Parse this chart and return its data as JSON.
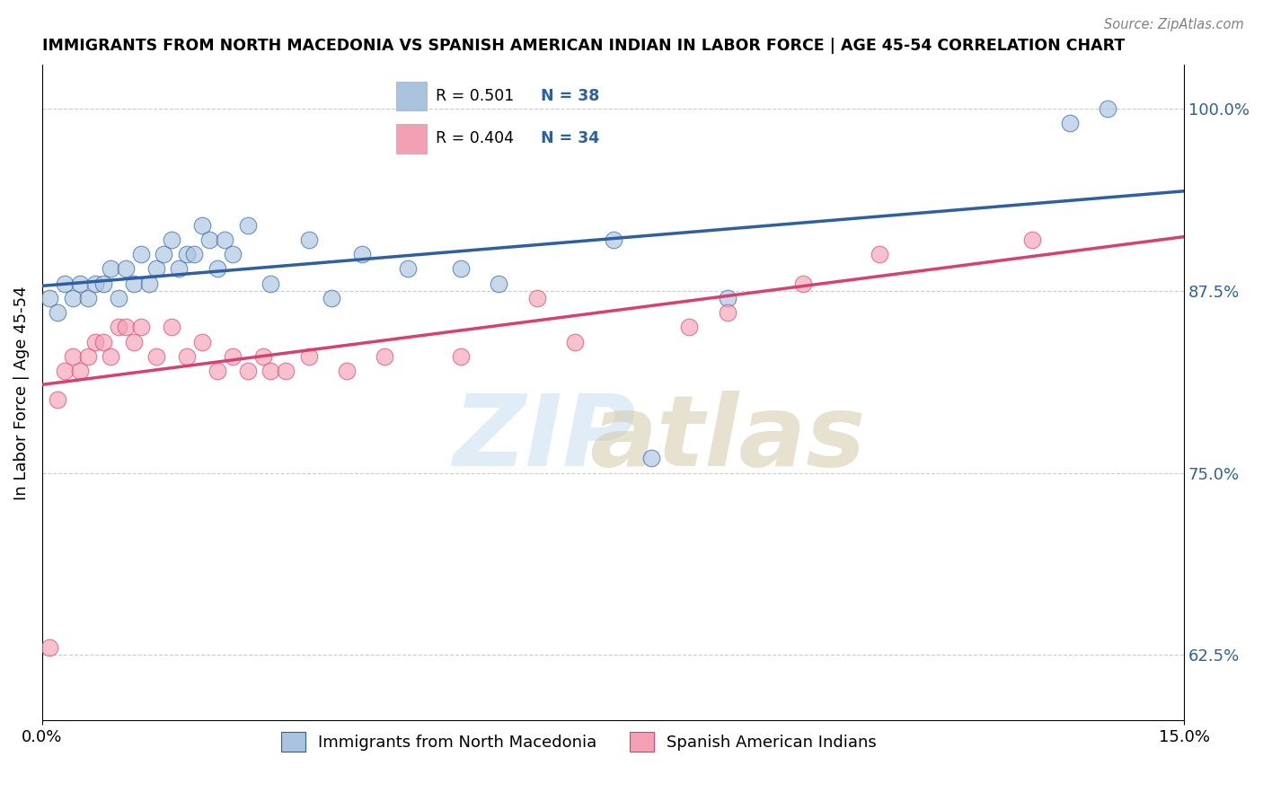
{
  "title": "IMMIGRANTS FROM NORTH MACEDONIA VS SPANISH AMERICAN INDIAN IN LABOR FORCE | AGE 45-54 CORRELATION CHART",
  "source": "Source: ZipAtlas.com",
  "ylabel": "In Labor Force | Age 45-54",
  "right_yticks": [
    62.5,
    75.0,
    87.5,
    100.0
  ],
  "right_ytick_labels": [
    "62.5%",
    "75.0%",
    "87.5%",
    "100.0%"
  ],
  "xlim": [
    0.0,
    15.0
  ],
  "ylim": [
    58.0,
    103.0
  ],
  "blue_R": 0.501,
  "blue_N": 38,
  "pink_R": 0.404,
  "pink_N": 34,
  "blue_color": "#aac4e0",
  "blue_line_color": "#2e5fa3",
  "pink_color": "#f4a0b4",
  "pink_line_color": "#d84070",
  "blue_label": "Immigrants from North Macedonia",
  "pink_label": "Spanish American Indians",
  "blue_scatter_x": [
    0.1,
    0.2,
    0.3,
    0.4,
    0.5,
    0.6,
    0.7,
    0.8,
    0.9,
    1.0,
    1.1,
    1.2,
    1.3,
    1.4,
    1.5,
    1.6,
    1.7,
    1.8,
    1.9,
    2.0,
    2.1,
    2.2,
    2.3,
    2.4,
    2.5,
    2.7,
    3.0,
    3.5,
    3.8,
    4.2,
    4.8,
    5.5,
    6.0,
    7.5,
    8.0,
    9.0,
    13.5,
    14.0
  ],
  "blue_scatter_y": [
    87,
    86,
    88,
    87,
    88,
    87,
    88,
    88,
    89,
    87,
    89,
    88,
    90,
    88,
    89,
    90,
    91,
    89,
    90,
    90,
    92,
    91,
    89,
    91,
    90,
    92,
    88,
    91,
    87,
    90,
    89,
    89,
    88,
    91,
    76,
    87,
    99,
    100
  ],
  "pink_scatter_x": [
    0.1,
    0.2,
    0.3,
    0.4,
    0.5,
    0.6,
    0.7,
    0.8,
    0.9,
    1.0,
    1.1,
    1.2,
    1.3,
    1.5,
    1.7,
    1.9,
    2.1,
    2.3,
    2.5,
    2.7,
    2.9,
    3.0,
    3.2,
    3.5,
    4.0,
    4.5,
    5.5,
    6.5,
    7.0,
    8.5,
    9.0,
    10.0,
    11.0,
    13.0
  ],
  "pink_scatter_y": [
    63,
    80,
    82,
    83,
    82,
    83,
    84,
    84,
    83,
    85,
    85,
    84,
    85,
    83,
    85,
    83,
    84,
    82,
    83,
    82,
    83,
    82,
    82,
    83,
    82,
    83,
    83,
    87,
    84,
    85,
    86,
    88,
    90,
    91
  ]
}
